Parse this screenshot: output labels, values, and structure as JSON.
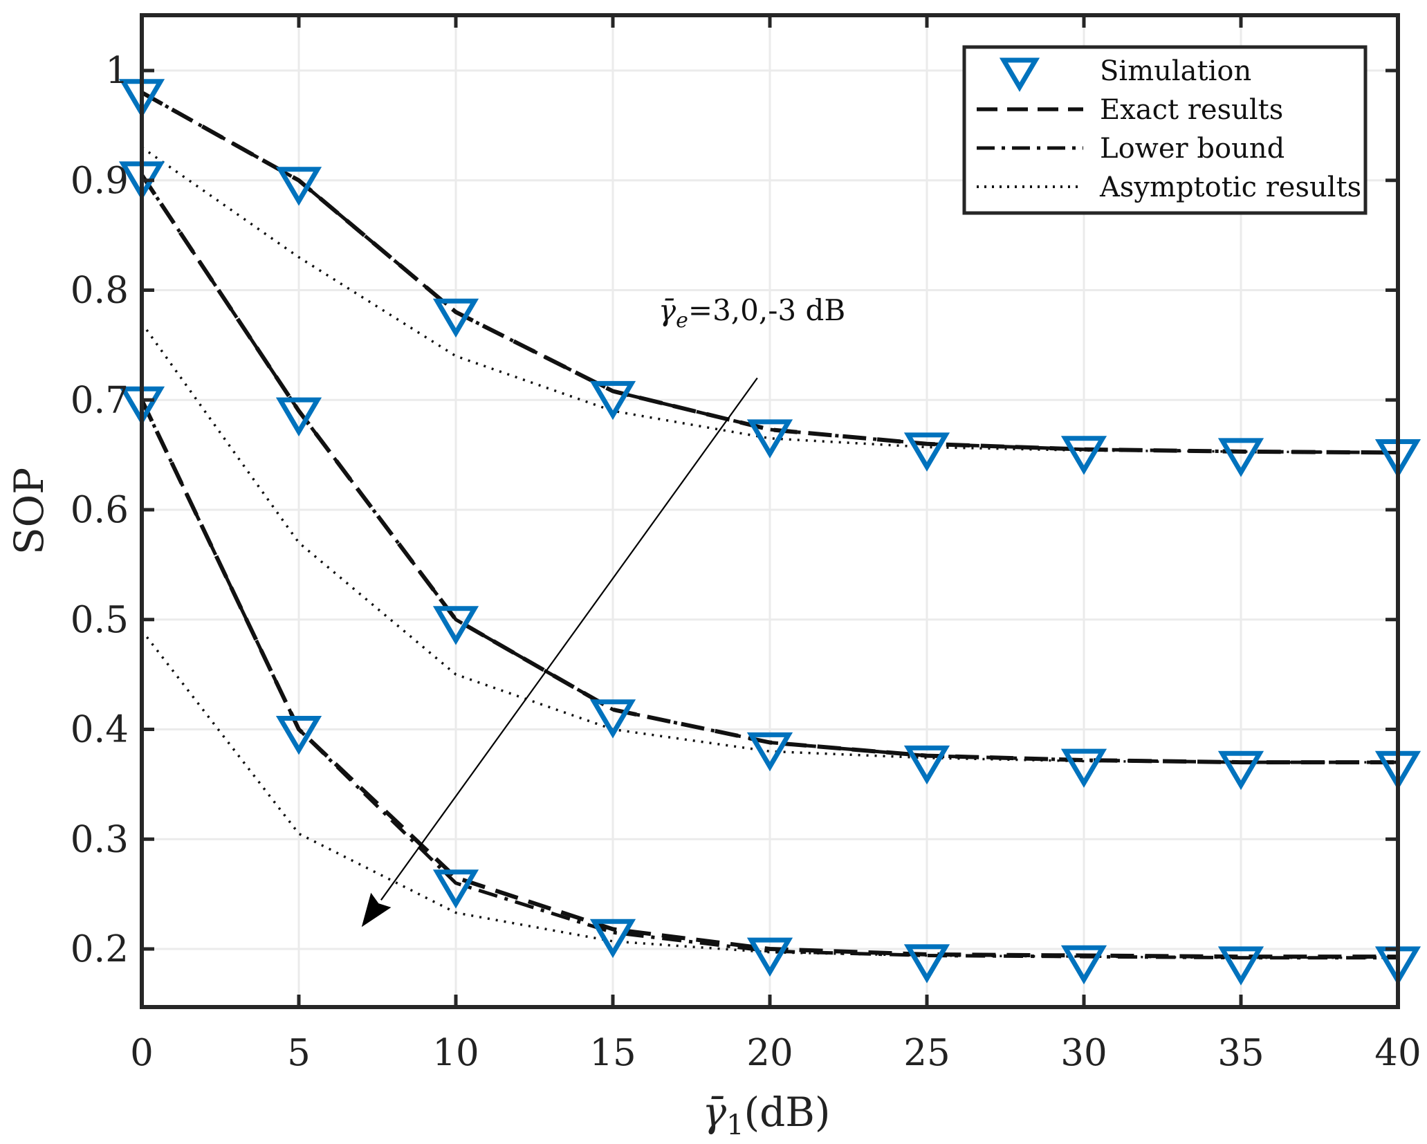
{
  "chart_data": {
    "type": "line",
    "title": "",
    "xlabel": "γ̄",
    "xlabel_sub": "1",
    "xlabel_suffix": "(dB)",
    "ylabel": "SOP",
    "xlim": [
      0,
      40
    ],
    "ylim": [
      0.15,
      1.05
    ],
    "xticks": [
      0,
      5,
      10,
      15,
      20,
      25,
      30,
      35,
      40
    ],
    "xtick_labels": [
      "0",
      "5",
      "10",
      "15",
      "20",
      "25",
      "30",
      "35",
      "40"
    ],
    "yticks": [
      0.2,
      0.3,
      0.4,
      0.5,
      0.6,
      0.7,
      0.8,
      0.9,
      1.0
    ],
    "ytick_labels": [
      "0.2",
      "0.3",
      "0.4",
      "0.5",
      "0.6",
      "0.7",
      "0.8",
      "0.9",
      "1"
    ],
    "grid": true,
    "legend_position": "top-right",
    "x": [
      0,
      5,
      10,
      15,
      20,
      25,
      30,
      35,
      40
    ],
    "groups": [
      {
        "gamma_e": "3 dB",
        "simulation": [
          0.98,
          0.9,
          0.78,
          0.705,
          0.67,
          0.658,
          0.655,
          0.653,
          0.652
        ],
        "exact": [
          0.98,
          0.9,
          0.78,
          0.708,
          0.673,
          0.66,
          0.655,
          0.653,
          0.652
        ],
        "lower_bound": [
          0.98,
          0.9,
          0.78,
          0.708,
          0.673,
          0.66,
          0.655,
          0.653,
          0.652
        ],
        "asymptotic": [
          0.93,
          0.83,
          0.74,
          0.69,
          0.665,
          0.657,
          0.654,
          0.653,
          0.652
        ]
      },
      {
        "gamma_e": "0 dB",
        "simulation": [
          0.905,
          0.69,
          0.5,
          0.415,
          0.385,
          0.373,
          0.37,
          0.368,
          0.368
        ],
        "exact": [
          0.905,
          0.69,
          0.5,
          0.418,
          0.388,
          0.376,
          0.372,
          0.37,
          0.37
        ],
        "lower_bound": [
          0.905,
          0.69,
          0.5,
          0.418,
          0.388,
          0.376,
          0.372,
          0.37,
          0.37
        ],
        "asymptotic": [
          0.77,
          0.57,
          0.45,
          0.4,
          0.38,
          0.374,
          0.371,
          0.37,
          0.37
        ]
      },
      {
        "gamma_e": "-3 dB",
        "simulation": [
          0.7,
          0.4,
          0.26,
          0.215,
          0.198,
          0.192,
          0.191,
          0.19,
          0.19
        ],
        "exact": [
          0.7,
          0.4,
          0.265,
          0.218,
          0.2,
          0.195,
          0.194,
          0.193,
          0.193
        ],
        "lower_bound": [
          0.7,
          0.4,
          0.26,
          0.215,
          0.198,
          0.194,
          0.193,
          0.192,
          0.192
        ],
        "asymptotic": [
          0.49,
          0.305,
          0.233,
          0.207,
          0.197,
          0.194,
          0.193,
          0.192,
          0.192
        ]
      }
    ],
    "series_styles": {
      "simulation": {
        "color": "#0072BD",
        "marker": "triangle-down"
      },
      "exact": {
        "color": "#111111",
        "dash": "dashed"
      },
      "lower_bound": {
        "color": "#111111",
        "dash": "dash-dot"
      },
      "asymptotic": {
        "color": "#111111",
        "dash": "dotted"
      }
    },
    "legend": [
      "Simulation",
      "Exact results",
      "Lower bound",
      "Asymptotic results"
    ],
    "annotation": {
      "symbol": "γ̄",
      "subscript": "e",
      "text": "=3,0,-3 dB",
      "arrow_from": [
        19.6,
        0.72
      ],
      "arrow_to": [
        7,
        0.22
      ]
    }
  }
}
